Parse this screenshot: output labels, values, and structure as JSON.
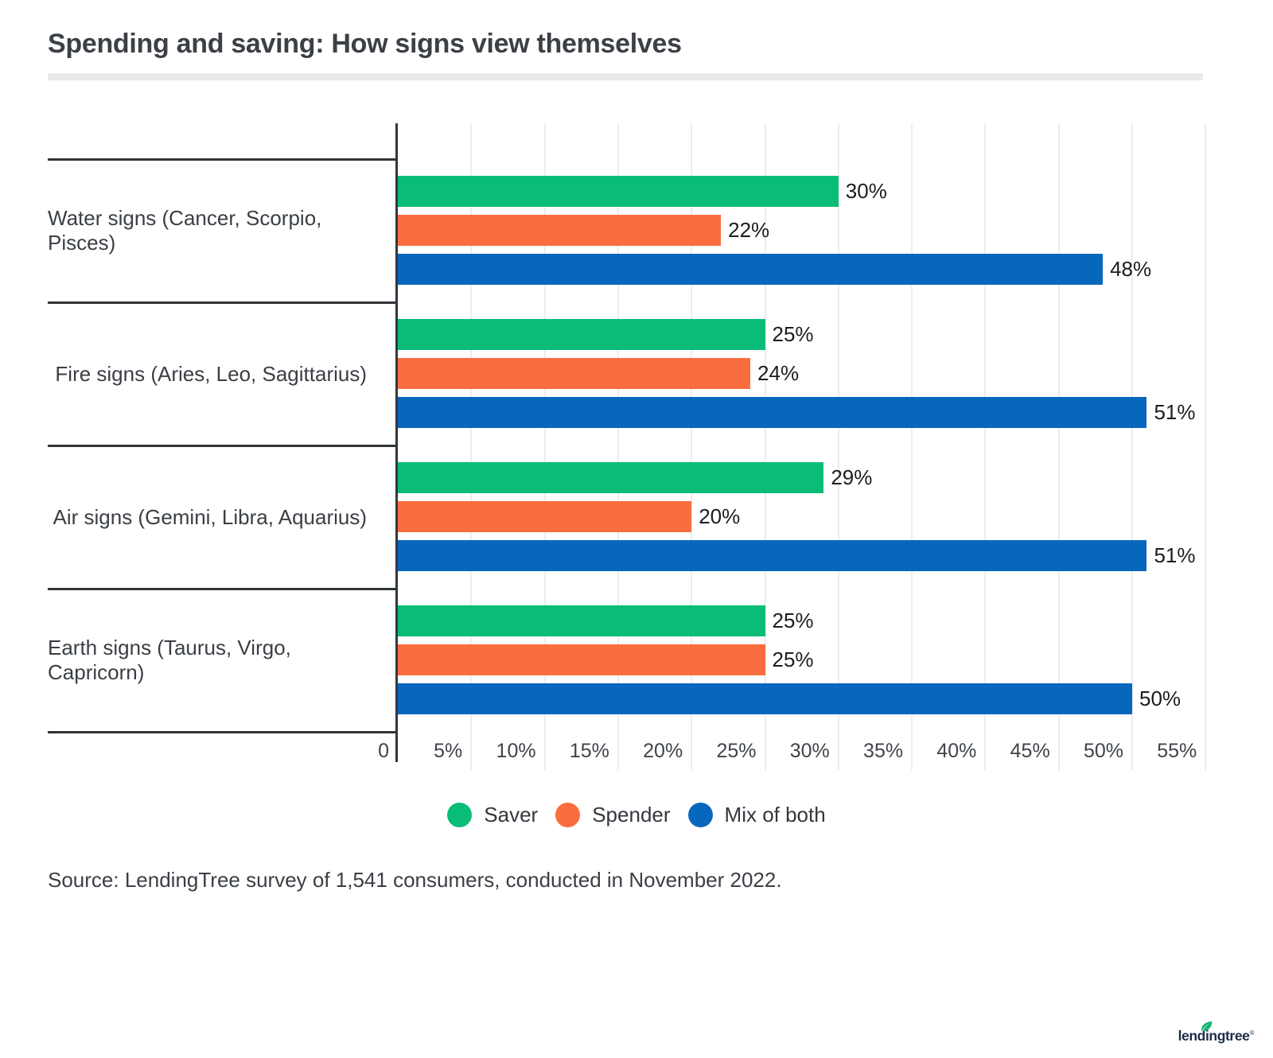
{
  "title": "Spending and saving: How signs view themselves",
  "chart_data": {
    "type": "bar",
    "orientation": "horizontal",
    "title": "Spending and saving: How signs view themselves",
    "categories": [
      "Water signs (Cancer, Scorpio, Pisces)",
      "Fire signs (Aries, Leo, Sagittarius)",
      "Air signs (Gemini, Libra, Aquarius)",
      "Earth signs (Taurus, Virgo, Capricorn)"
    ],
    "series": [
      {
        "name": "Saver",
        "color": "#09bd78",
        "values": [
          30,
          25,
          29,
          25
        ]
      },
      {
        "name": "Spender",
        "color": "#fb6d3e",
        "values": [
          22,
          24,
          20,
          25
        ]
      },
      {
        "name": "Mix of both",
        "color": "#0767bd",
        "values": [
          48,
          51,
          51,
          50
        ]
      }
    ],
    "value_labels": [
      [
        "30%",
        "25%",
        "29%",
        "25%"
      ],
      [
        "22%",
        "24%",
        "20%",
        "25%"
      ],
      [
        "48%",
        "51%",
        "51%",
        "50%"
      ]
    ],
    "value_suffix": "%",
    "xlim": [
      0,
      55
    ],
    "x_ticks": [
      {
        "value": 0,
        "label": "0"
      },
      {
        "value": 5,
        "label": "5%"
      },
      {
        "value": 10,
        "label": "10%"
      },
      {
        "value": 15,
        "label": "15%"
      },
      {
        "value": 20,
        "label": "20%"
      },
      {
        "value": 25,
        "label": "25%"
      },
      {
        "value": 30,
        "label": "30%"
      },
      {
        "value": 35,
        "label": "35%"
      },
      {
        "value": 40,
        "label": "40%"
      },
      {
        "value": 45,
        "label": "45%"
      },
      {
        "value": 50,
        "label": "50%"
      },
      {
        "value": 55,
        "label": "55%"
      }
    ],
    "grid": true,
    "legend_position": "bottom"
  },
  "colors": {
    "saver_green": "#09bd78",
    "spender_orange": "#fb6d3e",
    "mix_blue": "#0767bd",
    "axis_dark": "#33383d",
    "gridline": "#ededed",
    "title_text": "#3b4046",
    "label_text": "#3a3f45",
    "logo_navy": "#1c2d49",
    "logo_leaf_green": "#18b272"
  },
  "source_text": "Source: LendingTree survey of 1,541 consumers, conducted in November 2022.",
  "logo": {
    "text": "lendingtree",
    "mark": "®"
  }
}
